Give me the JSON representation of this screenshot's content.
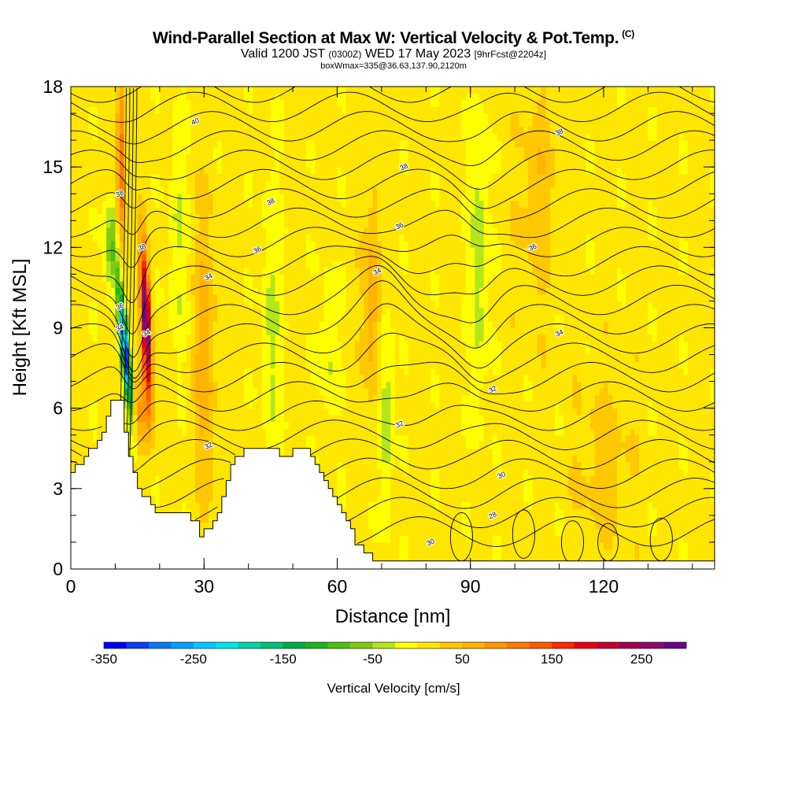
{
  "header": {
    "title": "Wind-Parallel Section at Max W: Vertical Velocity & Pot.Temp.",
    "title_mark": "(C)",
    "subtitle_a": "Valid 1200 JST",
    "subtitle_b": "(0300Z)",
    "subtitle_c": "WED 17 May 2023",
    "subtitle_d": "[9hrFcst@2204z]",
    "boxline": "boxWmax=335@36.63,137.90,2120m"
  },
  "chart_data": {
    "type": "heatmap",
    "title": "Wind-Parallel Section at Max W: Vertical Velocity & Pot.Temp.",
    "xlabel": "Distance [nm]",
    "ylabel": "Height [Kft MSL]",
    "xlim": [
      0,
      145
    ],
    "ylim": [
      0,
      18
    ],
    "xticks": [
      0,
      30,
      60,
      90,
      120
    ],
    "xminor_step": 10,
    "yticks": [
      0,
      3,
      6,
      9,
      12,
      15,
      18
    ],
    "yminor_step": 1,
    "colorbar": {
      "title": "Vertical Velocity [cm/s]",
      "min": -350,
      "max": 300,
      "step": 25,
      "tick_values": [
        -350,
        -250,
        -150,
        -50,
        50,
        150,
        250
      ],
      "tick_labels": [
        "-350",
        "-250",
        "-150",
        "-50",
        "50",
        "150",
        "250"
      ],
      "colors": [
        "#0000f0",
        "#0a3cf5",
        "#0a78f5",
        "#00a0ff",
        "#00c8ff",
        "#00e6e6",
        "#00d2a0",
        "#00be78",
        "#00aa46",
        "#1eb41e",
        "#50be14",
        "#82c814",
        "#b4e61e",
        "#ffff00",
        "#ffe600",
        "#ffc800",
        "#ffb400",
        "#ff9600",
        "#ff7800",
        "#ff5a00",
        "#ff2800",
        "#e60014",
        "#c80032",
        "#a00050",
        "#8c0a6e",
        "#640a82"
      ]
    },
    "theta_contours": [
      {
        "label": "28",
        "at": [
          95,
          2
        ]
      },
      {
        "label": "30",
        "at": [
          97,
          3.5
        ]
      },
      {
        "label": "30",
        "at": [
          81,
          1
        ]
      },
      {
        "label": "32",
        "at": [
          31,
          4.6
        ]
      },
      {
        "label": "32",
        "at": [
          74,
          5.4
        ]
      },
      {
        "label": "32",
        "at": [
          95,
          6.7
        ]
      },
      {
        "label": "34",
        "at": [
          11,
          9
        ]
      },
      {
        "label": "34",
        "at": [
          17,
          8.8
        ]
      },
      {
        "label": "34",
        "at": [
          31,
          10.9
        ]
      },
      {
        "label": "34",
        "at": [
          69,
          11.1
        ]
      },
      {
        "label": "34",
        "at": [
          110,
          8.8
        ]
      },
      {
        "label": "36",
        "at": [
          11,
          9.8
        ]
      },
      {
        "label": "36",
        "at": [
          42,
          11.9
        ]
      },
      {
        "label": "36",
        "at": [
          74,
          12.8
        ]
      },
      {
        "label": "36",
        "at": [
          104,
          12
        ]
      },
      {
        "label": "38",
        "at": [
          16,
          12
        ]
      },
      {
        "label": "38",
        "at": [
          11,
          14
        ]
      },
      {
        "label": "38",
        "at": [
          45,
          13.7
        ]
      },
      {
        "label": "38",
        "at": [
          75,
          15
        ]
      },
      {
        "label": "38",
        "at": [
          110,
          16.3
        ]
      },
      {
        "label": "40",
        "at": [
          28,
          16.7
        ]
      }
    ],
    "terrain_kft": [
      [
        0,
        3.6
      ],
      [
        3,
        4.2
      ],
      [
        5,
        4.5
      ],
      [
        7,
        5.1
      ],
      [
        8,
        5.6
      ],
      [
        9,
        6.2
      ],
      [
        11,
        6.2
      ],
      [
        12,
        5.0
      ],
      [
        13,
        4.2
      ],
      [
        14,
        3.6
      ],
      [
        15,
        3.0
      ],
      [
        17,
        2.6
      ],
      [
        19,
        2.2
      ],
      [
        21,
        2.0
      ],
      [
        26,
        2.0
      ],
      [
        28,
        1.8
      ],
      [
        29,
        1.3
      ],
      [
        31,
        1.6
      ],
      [
        33,
        2.2
      ],
      [
        35,
        3.4
      ],
      [
        37,
        4.2
      ],
      [
        39,
        4.4
      ],
      [
        41,
        4.4
      ],
      [
        46,
        4.4
      ],
      [
        48,
        4.1
      ],
      [
        50,
        4.4
      ],
      [
        53,
        4.4
      ],
      [
        56,
        3.6
      ],
      [
        58,
        3.0
      ],
      [
        60,
        2.4
      ],
      [
        62,
        1.7
      ],
      [
        64,
        1.0
      ],
      [
        66,
        0.7
      ],
      [
        69,
        0.3
      ],
      [
        72,
        0.3
      ],
      [
        75,
        0.3
      ],
      [
        145,
        0.3
      ]
    ]
  }
}
